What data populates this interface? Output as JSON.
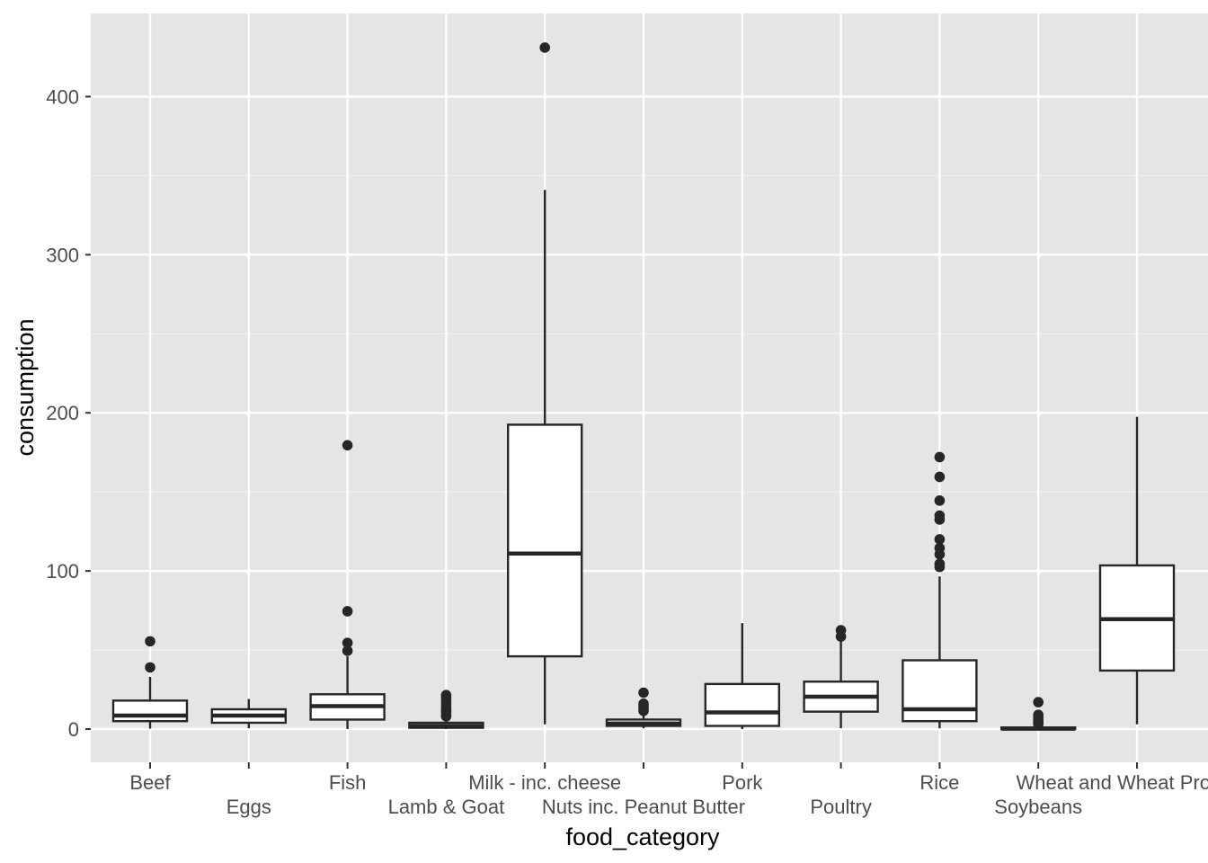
{
  "chart_data": {
    "type": "boxplot",
    "title": "",
    "xlabel": "food_category",
    "ylabel": "consumption",
    "ylim": [
      -21,
      454
    ],
    "y_ticks": [
      0,
      100,
      200,
      300,
      400
    ],
    "grid": true,
    "legend": "none",
    "colors": {
      "panel_background": "#e5e5e5",
      "grid_major": "#ffffff",
      "grid_minor": "#f2f2f2",
      "box_fill": "#ffffff",
      "box_stroke": "#262626",
      "outlier": "#262626",
      "tick_text": "#4d4d4d",
      "axis_title": "#000000"
    },
    "categories": [
      "Beef",
      "Eggs",
      "Fish",
      "Lamb & Goat",
      "Milk - inc. cheese",
      "Nuts inc. Peanut Butter",
      "Pork",
      "Poultry",
      "Rice",
      "Soybeans",
      "Wheat and Wheat Products"
    ],
    "boxes": [
      {
        "category": "Beef",
        "whisker_low": 0.3,
        "q1": 5,
        "median": 8.5,
        "q3": 18,
        "whisker_high": 33,
        "outliers": [
          39,
          55.5
        ]
      },
      {
        "category": "Eggs",
        "whisker_low": 0.5,
        "q1": 4,
        "median": 8.5,
        "q3": 12.5,
        "whisker_high": 19,
        "outliers": []
      },
      {
        "category": "Fish",
        "whisker_low": 0,
        "q1": 6,
        "median": 14.5,
        "q3": 22,
        "whisker_high": 46,
        "outliers": [
          49.5,
          54.5,
          74.5,
          179.5
        ]
      },
      {
        "category": "Lamb & Goat",
        "whisker_low": 0,
        "q1": 0.8,
        "median": 2,
        "q3": 4,
        "whisker_high": 7,
        "outliers": [
          8,
          9.5,
          11,
          12.5,
          14,
          16,
          18,
          20,
          21.5
        ]
      },
      {
        "category": "Milk - inc. cheese",
        "whisker_low": 3,
        "q1": 46,
        "median": 111,
        "q3": 192.5,
        "whisker_high": 341,
        "outliers": [
          431
        ]
      },
      {
        "category": "Nuts inc. Peanut Butter",
        "whisker_low": 0.5,
        "q1": 2,
        "median": 3.5,
        "q3": 6,
        "whisker_high": 10,
        "outliers": [
          11.5,
          13,
          14.5,
          16,
          23
        ]
      },
      {
        "category": "Pork",
        "whisker_low": 0,
        "q1": 2,
        "median": 10.5,
        "q3": 28.5,
        "whisker_high": 67,
        "outliers": []
      },
      {
        "category": "Poultry",
        "whisker_low": 0.5,
        "q1": 11,
        "median": 20.5,
        "q3": 30,
        "whisker_high": 56,
        "outliers": [
          58.5,
          62.5
        ]
      },
      {
        "category": "Rice",
        "whisker_low": 0.5,
        "q1": 5,
        "median": 12.5,
        "q3": 43.5,
        "whisker_high": 96.5,
        "outliers": [
          102.5,
          104.5,
          110.5,
          114.5,
          120,
          132.5,
          135,
          144.5,
          159.5,
          172
        ]
      },
      {
        "category": "Soybeans",
        "whisker_low": 0,
        "q1": 0,
        "median": 0.2,
        "q3": 1,
        "whisker_high": 2,
        "outliers": [
          3,
          4,
          5,
          6,
          7.5,
          9,
          17
        ]
      },
      {
        "category": "Wheat and Wheat Products",
        "whisker_low": 3,
        "q1": 37,
        "median": 69.5,
        "q3": 103.5,
        "whisker_high": 197.5,
        "outliers": []
      }
    ]
  }
}
